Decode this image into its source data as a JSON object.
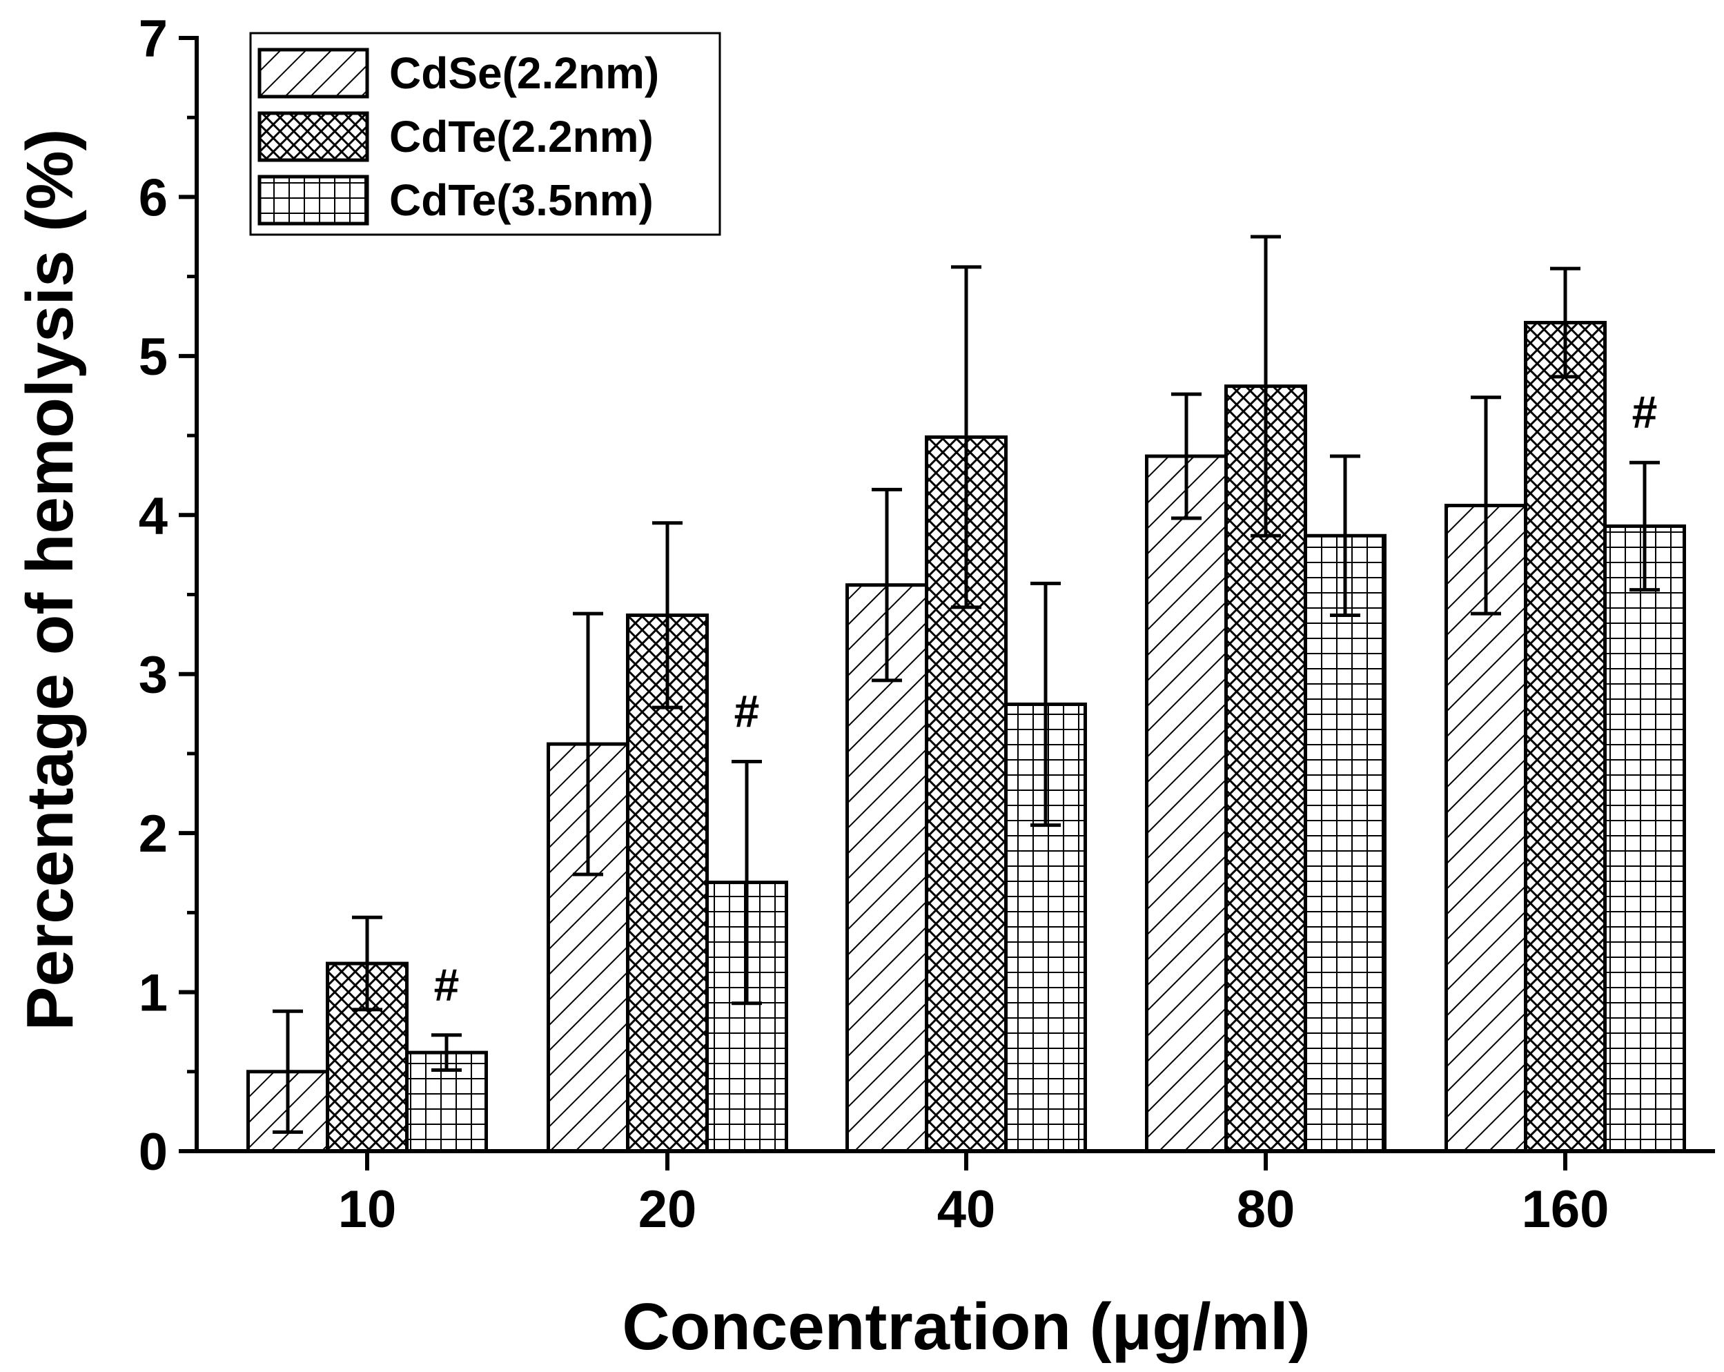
{
  "chart_data": {
    "type": "bar",
    "title": "",
    "xlabel": "Concentration (μg/ml)",
    "ylabel": "Percentage of hemolysis (%)",
    "ylim": [
      0,
      7
    ],
    "yticks": [
      "0",
      "1",
      "2",
      "3",
      "4",
      "5",
      "6",
      "7"
    ],
    "categories": [
      "10",
      "20",
      "40",
      "80",
      "160"
    ],
    "series": [
      {
        "name": "CdSe(2.2nm)",
        "pattern": "diagonal-hatch",
        "values": [
          0.5,
          2.56,
          3.56,
          4.37,
          4.06
        ],
        "errors": [
          0.38,
          0.82,
          0.6,
          0.39,
          0.68
        ]
      },
      {
        "name": "CdTe(2.2nm)",
        "pattern": "crosshatch",
        "values": [
          1.18,
          3.37,
          4.49,
          4.81,
          5.21
        ],
        "errors": [
          0.29,
          0.58,
          1.07,
          0.94,
          0.34
        ]
      },
      {
        "name": "CdTe(3.5nm)",
        "pattern": "grid",
        "values": [
          0.62,
          1.69,
          2.81,
          3.87,
          3.93
        ],
        "errors": [
          0.11,
          0.76,
          0.76,
          0.5,
          0.4
        ]
      }
    ],
    "annotations": [
      {
        "text": "#",
        "category": "10",
        "series": "CdTe(3.5nm)"
      },
      {
        "text": "#",
        "category": "20",
        "series": "CdTe(3.5nm)"
      },
      {
        "text": "#",
        "category": "160",
        "series": "CdTe(3.5nm)"
      }
    ],
    "legend": {
      "position": "top-left"
    },
    "grid": false,
    "colors": {
      "stroke": "#000000",
      "fill": "#ffffff"
    }
  }
}
